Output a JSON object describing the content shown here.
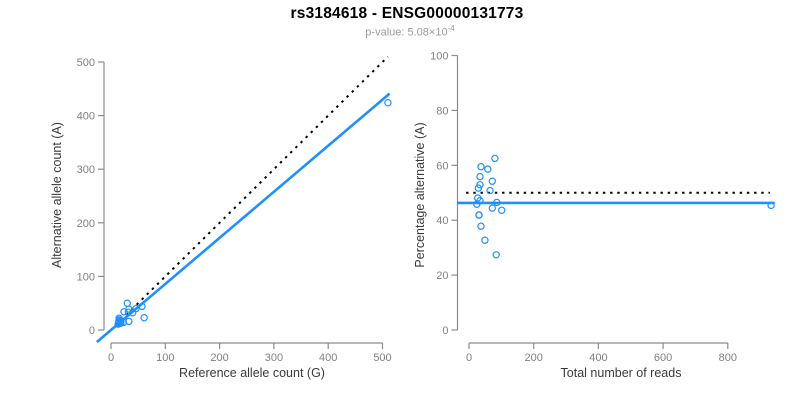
{
  "figure": {
    "title": "rs3184618 - ENSG00000131773",
    "subtitle_base": "p-value: 5.08×10",
    "subtitle_exponent": "-4"
  },
  "colors": {
    "point_and_fit_line": "#1E90FF",
    "reference_line": "#000000",
    "tick_label": "#808080",
    "axis_line": "#8c8c8c",
    "axis_title": "#3a3a3a",
    "title": "#000000",
    "subtitle": "#9a9a9a"
  },
  "chart_data": [
    {
      "type": "scatter",
      "panel": "left",
      "xlabel": "Reference allele count (G)",
      "ylabel": "Alternative allele count (A)",
      "xlim": [
        0,
        510
      ],
      "ylim": [
        0,
        510
      ],
      "xticks": [
        0,
        100,
        200,
        300,
        400,
        500
      ],
      "yticks": [
        0,
        100,
        200,
        300,
        400,
        500
      ],
      "marker": "open-circle",
      "grid": false,
      "points": [
        [
          30,
          50
        ],
        [
          15,
          22
        ],
        [
          24,
          34
        ],
        [
          15,
          19
        ],
        [
          16,
          18
        ],
        [
          33,
          39
        ],
        [
          14,
          15
        ],
        [
          32,
          33
        ],
        [
          14,
          13
        ],
        [
          18,
          16
        ],
        [
          46,
          40
        ],
        [
          13,
          11
        ],
        [
          40,
          32
        ],
        [
          57,
          44
        ],
        [
          18,
          13
        ],
        [
          18,
          13
        ],
        [
          23,
          14
        ],
        [
          33,
          16
        ],
        [
          61,
          23
        ],
        [
          510,
          424
        ]
      ],
      "lines": [
        {
          "name": "identity-line",
          "style": "dotted",
          "color": "#000000",
          "from": [
            0,
            0
          ],
          "to": [
            510,
            510
          ]
        },
        {
          "name": "fit-line",
          "style": "solid",
          "color": "#1E90FF",
          "from": [
            -26,
            -22.4
          ],
          "to": [
            513,
            441
          ]
        }
      ]
    },
    {
      "type": "scatter",
      "panel": "right",
      "xlabel": "Total number of reads",
      "ylabel": "Percentage alternative (A)",
      "xlim": [
        0,
        940
      ],
      "ylim": [
        0,
        100
      ],
      "xticks": [
        0,
        200,
        400,
        600,
        800
      ],
      "yticks": [
        0,
        20,
        40,
        60,
        80,
        100
      ],
      "marker": "open-circle",
      "grid": false,
      "points": [
        [
          80,
          62.5
        ],
        [
          37,
          59.5
        ],
        [
          58,
          58.6
        ],
        [
          34,
          55.9
        ],
        [
          34,
          52.9
        ],
        [
          72,
          54.2
        ],
        [
          29,
          51.7
        ],
        [
          65,
          50.8
        ],
        [
          27,
          48.1
        ],
        [
          34,
          47.1
        ],
        [
          86,
          46.5
        ],
        [
          24,
          45.8
        ],
        [
          72,
          44.4
        ],
        [
          101,
          43.6
        ],
        [
          31,
          41.9
        ],
        [
          31,
          41.9
        ],
        [
          37,
          37.8
        ],
        [
          49,
          32.7
        ],
        [
          84,
          27.4
        ],
        [
          934,
          45.4
        ]
      ],
      "lines": [
        {
          "name": "expected-50pct-line",
          "style": "dotted",
          "color": "#000000",
          "from": [
            -9,
            50
          ],
          "to": [
            930,
            50
          ]
        },
        {
          "name": "observed-mean-line",
          "style": "solid",
          "color": "#1E90FF",
          "from": [
            -37,
            46.3
          ],
          "to": [
            945,
            46.3
          ]
        }
      ]
    }
  ]
}
